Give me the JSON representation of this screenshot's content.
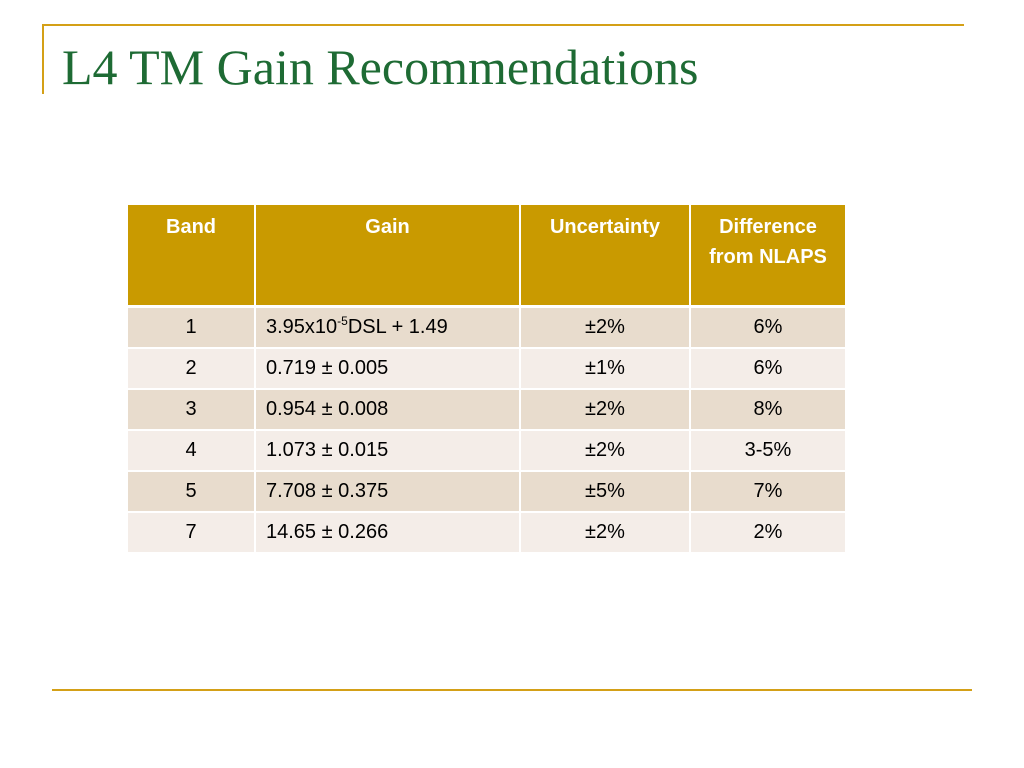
{
  "slide": {
    "title": "L4 TM Gain Recommendations"
  },
  "colors": {
    "accent_gold": "#c99a00",
    "frame_gold": "#d4a017",
    "title_green": "#1e6b34",
    "row_odd": "#e8dccd",
    "row_even": "#f4ede8"
  },
  "table": {
    "headers": {
      "band": "Band",
      "gain": "Gain",
      "uncertainty": "Uncertainty",
      "difference": "Difference from NLAPS"
    },
    "rows": [
      {
        "band": "1",
        "gain_prefix": "3.95x10",
        "gain_exp": "-5",
        "gain_suffix": "DSL + 1.49",
        "uncertainty": "±2%",
        "difference": "6%"
      },
      {
        "band": "2",
        "gain": "0.719 ± 0.005",
        "uncertainty": "±1%",
        "difference": "6%"
      },
      {
        "band": "3",
        "gain": "0.954 ± 0.008",
        "uncertainty": "±2%",
        "difference": "8%"
      },
      {
        "band": "4",
        "gain": "1.073 ± 0.015",
        "uncertainty": "±2%",
        "difference": "3-5%"
      },
      {
        "band": "5",
        "gain": "7.708 ± 0.375",
        "uncertainty": "±5%",
        "difference": "7%"
      },
      {
        "band": "7",
        "gain": "14.65 ± 0.266",
        "uncertainty": "±2%",
        "difference": "2%"
      }
    ]
  }
}
